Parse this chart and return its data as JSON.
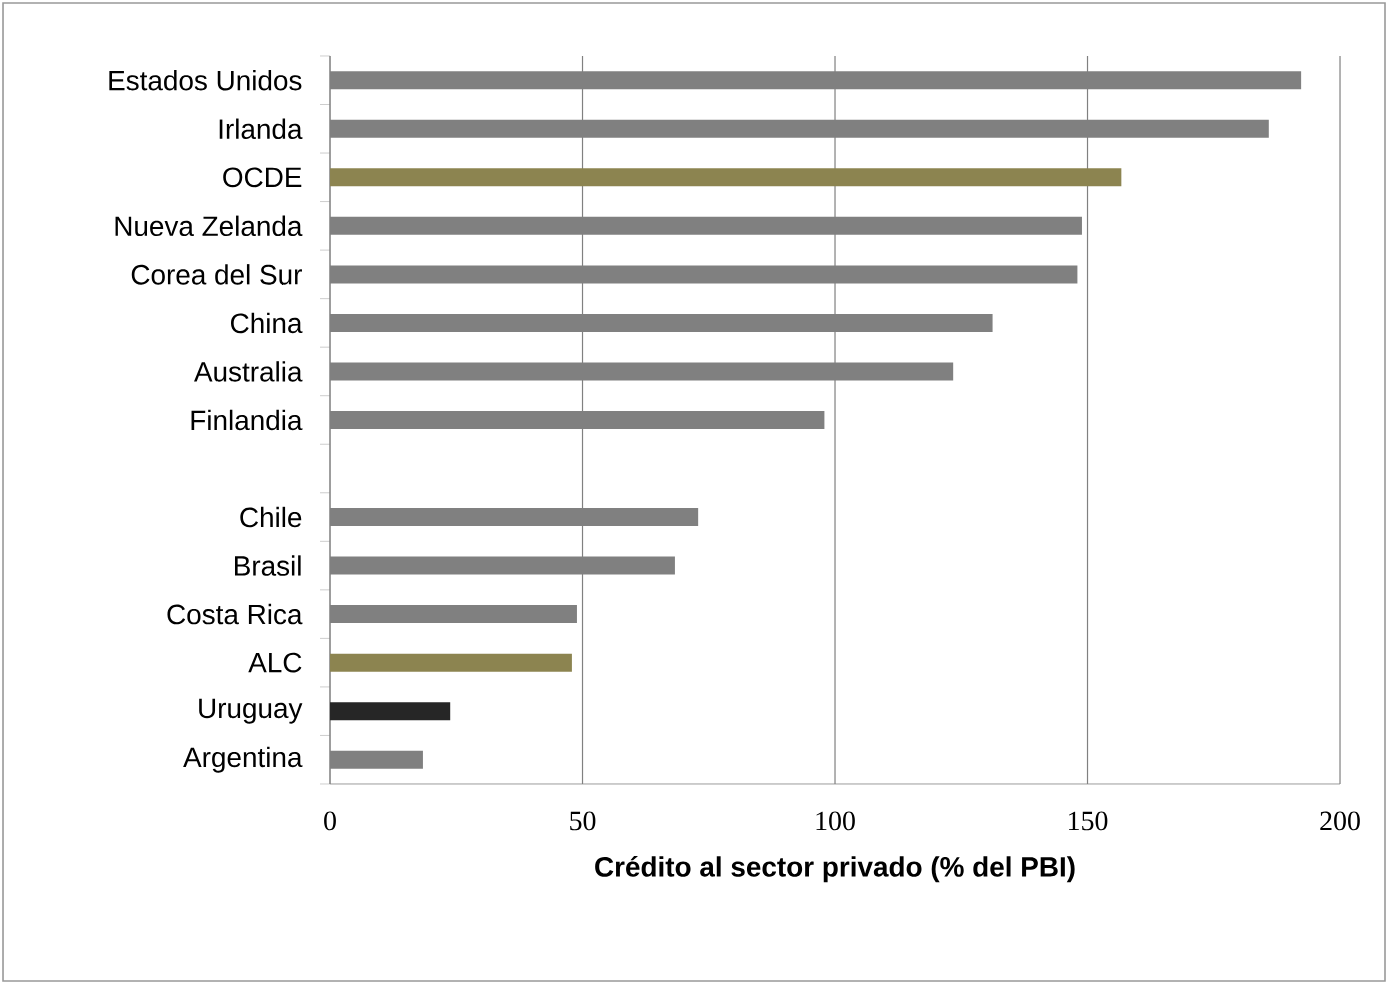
{
  "chart_data": {
    "type": "bar",
    "orientation": "horizontal",
    "xlabel": "Crédito al sector privado (% del PBI)",
    "categories": [
      "Estados Unidos",
      "Irlanda",
      "OCDE",
      "Nueva Zelanda",
      "Corea del Sur",
      "China",
      "Australia",
      "Finlandia",
      null,
      "Chile",
      "Brasil",
      "Costa Rica",
      "ALC",
      "Uruguay",
      "Argentina"
    ],
    "values": [
      192.3,
      185.9,
      156.7,
      148.9,
      148.0,
      131.2,
      123.4,
      97.9,
      null,
      72.9,
      68.3,
      48.9,
      47.9,
      23.8,
      18.4
    ],
    "colors": [
      "#808080",
      "#808080",
      "#8c8450",
      "#808080",
      "#808080",
      "#808080",
      "#808080",
      "#808080",
      "#808080",
      "#808080",
      "#808080",
      "#808080",
      "#8c8450",
      "#262626",
      "#808080"
    ],
    "xlim": [
      0,
      200
    ],
    "xticks": [
      0,
      50,
      100,
      150,
      200
    ],
    "grid": "x"
  }
}
